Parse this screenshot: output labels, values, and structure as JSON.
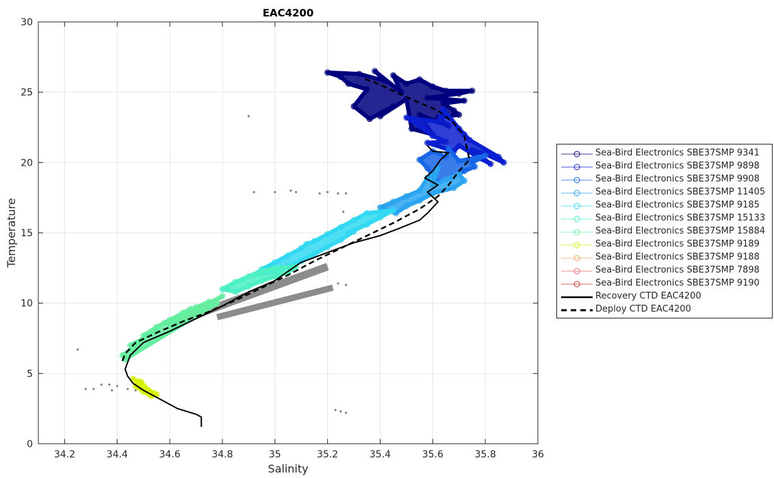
{
  "chart_data": {
    "type": "scatter",
    "title": "EAC4200",
    "xlabel": "Salinity",
    "ylabel": "Temperature",
    "xlim": [
      34.1,
      36
    ],
    "ylim": [
      0,
      30
    ],
    "xticks": [
      "34.2",
      "34.4",
      "34.6",
      "34.8",
      "35",
      "35.2",
      "35.4",
      "35.6",
      "35.8",
      "36"
    ],
    "yticks": [
      "0",
      "5",
      "10",
      "15",
      "20",
      "25",
      "30"
    ],
    "grid": true,
    "legend_position": "outside-right",
    "series": [
      {
        "name": "Sea-Bird Electronics SBE37SMP 9341",
        "color": "#00007f",
        "marker": "circle",
        "points": [
          [
            35.2,
            26.4
          ],
          [
            35.25,
            26.1
          ],
          [
            35.32,
            26.3
          ],
          [
            35.38,
            26.5
          ],
          [
            35.45,
            26.2
          ],
          [
            35.5,
            25.6
          ],
          [
            35.55,
            25.9
          ],
          [
            35.6,
            25.4
          ],
          [
            35.65,
            25.1
          ],
          [
            35.7,
            24.9
          ],
          [
            35.75,
            25.1
          ],
          [
            35.72,
            24.4
          ],
          [
            35.68,
            23.7
          ],
          [
            35.62,
            23.2
          ],
          [
            35.55,
            23.4
          ],
          [
            35.5,
            24.5
          ],
          [
            35.45,
            24.0
          ],
          [
            35.4,
            23.3
          ],
          [
            35.36,
            23.1
          ],
          [
            35.3,
            24.0
          ],
          [
            35.35,
            25.2
          ],
          [
            35.58,
            24.6
          ],
          [
            35.66,
            22.6
          ],
          [
            35.6,
            22.0
          ],
          [
            35.52,
            22.4
          ],
          [
            35.48,
            25.0
          ],
          [
            35.42,
            25.8
          ],
          [
            35.28,
            25.6
          ],
          [
            35.7,
            23.4
          ],
          [
            35.64,
            24.2
          ]
        ]
      },
      {
        "name": "Sea-Bird Electronics SBE37SMP 9898",
        "color": "#0a1fd0",
        "marker": "circle",
        "points": [
          [
            35.55,
            22.6
          ],
          [
            35.6,
            21.9
          ],
          [
            35.65,
            21.5
          ],
          [
            35.7,
            21.2
          ],
          [
            35.75,
            20.9
          ],
          [
            35.8,
            20.6
          ],
          [
            35.85,
            20.4
          ],
          [
            35.87,
            20.0
          ],
          [
            35.82,
            19.9
          ],
          [
            35.78,
            20.3
          ],
          [
            35.7,
            22.4
          ],
          [
            35.62,
            22.9
          ],
          [
            35.5,
            23.2
          ],
          [
            35.58,
            21.4
          ],
          [
            35.68,
            20.8
          ],
          [
            35.74,
            21.6
          ],
          [
            35.64,
            23.8
          ],
          [
            35.72,
            22.0
          ]
        ]
      },
      {
        "name": "Sea-Bird Electronics SBE37SMP 9908",
        "color": "#1766e6",
        "marker": "circle",
        "points": [
          [
            35.6,
            20.8
          ],
          [
            35.65,
            20.4
          ],
          [
            35.7,
            20.1
          ],
          [
            35.75,
            20.0
          ],
          [
            35.8,
            20.5
          ],
          [
            35.72,
            19.4
          ],
          [
            35.68,
            19.0
          ],
          [
            35.62,
            18.6
          ],
          [
            35.58,
            19.6
          ],
          [
            35.55,
            20.2
          ],
          [
            35.66,
            21.0
          ],
          [
            35.76,
            19.7
          ]
        ]
      },
      {
        "name": "Sea-Bird Electronics SBE37SMP 11405",
        "color": "#2aa3f0",
        "marker": "circle",
        "points": [
          [
            35.4,
            16.8
          ],
          [
            35.45,
            17.2
          ],
          [
            35.5,
            17.6
          ],
          [
            35.55,
            18.0
          ],
          [
            35.6,
            18.4
          ],
          [
            35.65,
            18.8
          ],
          [
            35.7,
            19.2
          ],
          [
            35.72,
            18.7
          ],
          [
            35.68,
            18.2
          ],
          [
            35.6,
            17.8
          ],
          [
            35.55,
            17.3
          ],
          [
            35.5,
            16.9
          ],
          [
            35.46,
            16.4
          ],
          [
            35.62,
            19.6
          ],
          [
            35.58,
            18.9
          ]
        ]
      },
      {
        "name": "Sea-Bird Electronics SBE37SMP 9185",
        "color": "#33d9f2",
        "marker": "circle",
        "points": [
          [
            34.95,
            12.4
          ],
          [
            35.0,
            12.9
          ],
          [
            35.05,
            13.4
          ],
          [
            35.1,
            13.9
          ],
          [
            35.15,
            14.4
          ],
          [
            35.2,
            14.9
          ],
          [
            35.25,
            15.4
          ],
          [
            35.3,
            15.9
          ],
          [
            35.35,
            16.4
          ],
          [
            35.4,
            16.1
          ],
          [
            35.35,
            15.6
          ],
          [
            35.3,
            15.1
          ],
          [
            35.25,
            14.5
          ],
          [
            35.2,
            14.0
          ],
          [
            35.15,
            13.5
          ],
          [
            35.1,
            13.0
          ],
          [
            35.05,
            12.6
          ],
          [
            35.0,
            12.2
          ],
          [
            34.92,
            12.0
          ],
          [
            35.45,
            16.6
          ],
          [
            35.28,
            15.0
          ],
          [
            35.12,
            14.2
          ]
        ]
      },
      {
        "name": "Sea-Bird Electronics SBE37SMP 15133",
        "color": "#4df0c2",
        "marker": "circle",
        "points": [
          [
            34.8,
            11.0
          ],
          [
            34.85,
            11.5
          ],
          [
            34.9,
            11.9
          ],
          [
            34.95,
            12.3
          ],
          [
            35.0,
            12.5
          ],
          [
            35.05,
            12.2
          ],
          [
            35.0,
            11.9
          ],
          [
            34.95,
            11.6
          ],
          [
            34.9,
            11.2
          ],
          [
            34.85,
            10.8
          ],
          [
            35.08,
            12.6
          ],
          [
            34.88,
            11.7
          ]
        ]
      },
      {
        "name": "Sea-Bird Electronics SBE37SMP 15884",
        "color": "#66eea0",
        "marker": "circle",
        "points": [
          [
            34.42,
            6.3
          ],
          [
            34.45,
            7.0
          ],
          [
            34.5,
            7.7
          ],
          [
            34.55,
            8.3
          ],
          [
            34.6,
            8.8
          ],
          [
            34.65,
            9.3
          ],
          [
            34.7,
            9.7
          ],
          [
            34.75,
            10.1
          ],
          [
            34.8,
            10.5
          ],
          [
            34.78,
            10.0
          ],
          [
            34.72,
            9.5
          ],
          [
            34.65,
            9.0
          ],
          [
            34.6,
            8.5
          ],
          [
            34.55,
            8.0
          ],
          [
            34.5,
            7.4
          ],
          [
            34.46,
            6.8
          ],
          [
            34.43,
            6.0
          ],
          [
            34.58,
            8.6
          ],
          [
            34.68,
            9.6
          ]
        ]
      },
      {
        "name": "Sea-Bird Electronics SBE37SMP 9189",
        "color": "#d6f20a",
        "marker": "circle",
        "points": [
          [
            34.46,
            4.6
          ],
          [
            34.48,
            4.3
          ],
          [
            34.5,
            4.0
          ],
          [
            34.52,
            3.8
          ],
          [
            34.54,
            3.6
          ],
          [
            34.53,
            3.4
          ],
          [
            34.5,
            3.7
          ],
          [
            34.47,
            4.1
          ],
          [
            34.49,
            4.4
          ],
          [
            34.55,
            3.5
          ]
        ]
      },
      {
        "name": "Sea-Bird Electronics SBE37SMP 9188",
        "color": "#f5a060",
        "marker": "circle",
        "points": []
      },
      {
        "name": "Sea-Bird Electronics SBE37SMP 7898",
        "color": "#ef6060",
        "marker": "circle",
        "points": []
      },
      {
        "name": "Sea-Bird Electronics SBE37SMP 9190",
        "color": "#d03030",
        "marker": "circle",
        "points": []
      },
      {
        "name": "Recovery CTD EAC4200",
        "color": "#000000",
        "style": "solid",
        "points": [
          [
            34.72,
            1.2
          ],
          [
            34.72,
            1.9
          ],
          [
            34.7,
            2.1
          ],
          [
            34.63,
            2.5
          ],
          [
            34.56,
            3.2
          ],
          [
            34.5,
            3.8
          ],
          [
            34.46,
            4.3
          ],
          [
            34.44,
            4.8
          ],
          [
            34.43,
            5.3
          ],
          [
            34.44,
            5.8
          ],
          [
            34.45,
            6.3
          ],
          [
            34.5,
            7.2
          ],
          [
            34.6,
            8.0
          ],
          [
            34.7,
            8.9
          ],
          [
            34.8,
            9.8
          ],
          [
            34.9,
            10.8
          ],
          [
            35.0,
            11.6
          ],
          [
            35.06,
            12.4
          ],
          [
            35.1,
            12.9
          ],
          [
            35.2,
            13.6
          ],
          [
            35.3,
            14.3
          ],
          [
            35.4,
            14.8
          ],
          [
            35.47,
            15.3
          ],
          [
            35.55,
            15.9
          ],
          [
            35.58,
            16.4
          ],
          [
            35.62,
            17.2
          ],
          [
            35.58,
            17.9
          ],
          [
            35.62,
            18.4
          ],
          [
            35.57,
            18.9
          ],
          [
            35.6,
            19.4
          ],
          [
            35.63,
            20.2
          ],
          [
            35.66,
            20.7
          ],
          [
            35.6,
            20.8
          ],
          [
            35.58,
            21.2
          ]
        ]
      },
      {
        "name": "Deploy CTD EAC4200",
        "color": "#000000",
        "style": "dashed",
        "points": [
          [
            34.42,
            5.9
          ],
          [
            34.43,
            6.4
          ],
          [
            34.47,
            7.2
          ],
          [
            34.55,
            7.9
          ],
          [
            34.65,
            8.7
          ],
          [
            34.75,
            9.4
          ],
          [
            34.85,
            10.2
          ],
          [
            34.95,
            11.1
          ],
          [
            35.05,
            12.0
          ],
          [
            35.15,
            13.0
          ],
          [
            35.25,
            13.9
          ],
          [
            35.35,
            14.8
          ],
          [
            35.45,
            15.7
          ],
          [
            35.55,
            16.7
          ],
          [
            35.62,
            17.6
          ],
          [
            35.66,
            18.4
          ],
          [
            35.7,
            19.4
          ],
          [
            35.74,
            20.2
          ],
          [
            35.73,
            21.0
          ],
          [
            35.72,
            21.9
          ],
          [
            35.68,
            22.8
          ],
          [
            35.62,
            23.7
          ],
          [
            35.53,
            24.4
          ],
          [
            35.45,
            25.1
          ],
          [
            35.38,
            25.7
          ],
          [
            35.33,
            26.0
          ]
        ]
      }
    ],
    "flagged_points": {
      "color": "#808080",
      "points": [
        [
          34.9,
          23.3
        ],
        [
          34.92,
          17.9
        ],
        [
          35.0,
          17.9
        ],
        [
          35.06,
          18.0
        ],
        [
          35.08,
          17.9
        ],
        [
          35.17,
          17.8
        ],
        [
          35.2,
          17.9
        ],
        [
          35.24,
          17.8
        ],
        [
          35.27,
          17.8
        ],
        [
          35.26,
          16.5
        ],
        [
          34.25,
          6.7
        ],
        [
          34.28,
          3.9
        ],
        [
          34.31,
          3.9
        ],
        [
          34.34,
          4.2
        ],
        [
          34.37,
          4.2
        ],
        [
          34.4,
          4.1
        ],
        [
          34.44,
          3.9
        ],
        [
          34.47,
          3.8
        ],
        [
          34.38,
          3.8
        ],
        [
          35.23,
          2.4
        ],
        [
          35.25,
          2.3
        ],
        [
          35.27,
          2.2
        ],
        [
          35.24,
          11.4
        ],
        [
          35.27,
          11.3
        ]
      ]
    },
    "flagged_bands": [
      {
        "from": [
          34.6,
          8.5
        ],
        "to": [
          35.2,
          12.6
        ],
        "width": 0.55
      },
      {
        "from": [
          34.78,
          9.0
        ],
        "to": [
          35.22,
          11.1
        ],
        "width": 0.45
      }
    ]
  }
}
